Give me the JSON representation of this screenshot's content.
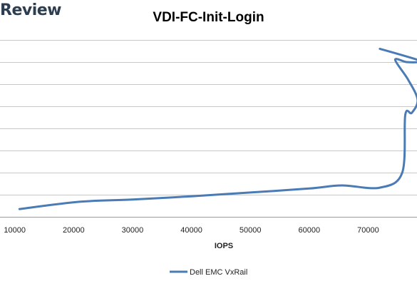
{
  "header": {
    "brand": "Review"
  },
  "chart_data": {
    "type": "line",
    "title": "VDI-FC-Init-Login",
    "xlabel": "IOPS",
    "ylabel": "",
    "x_ticks": [
      10000,
      20000,
      30000,
      40000,
      50000,
      60000,
      70000
    ],
    "xlim": [
      7500,
      78300
    ],
    "ylim": [
      0,
      8
    ],
    "grid": true,
    "legend": "bottom",
    "series": [
      {
        "name": "Dell EMC VxRail",
        "color": "#4a7bb5",
        "points": [
          {
            "x": 10800,
            "y": 0.35
          },
          {
            "x": 21000,
            "y": 0.68
          },
          {
            "x": 30000,
            "y": 0.78
          },
          {
            "x": 40000,
            "y": 0.93
          },
          {
            "x": 50000,
            "y": 1.1
          },
          {
            "x": 60000,
            "y": 1.28
          },
          {
            "x": 65500,
            "y": 1.42
          },
          {
            "x": 72000,
            "y": 1.32
          },
          {
            "x": 75800,
            "y": 2.0
          },
          {
            "x": 76300,
            "y": 4.6
          },
          {
            "x": 77400,
            "y": 4.7
          },
          {
            "x": 78400,
            "y": 5.3
          },
          {
            "x": 76800,
            "y": 6.2
          },
          {
            "x": 74600,
            "y": 7.1
          },
          {
            "x": 76500,
            "y": 7.0
          },
          {
            "x": 78400,
            "y": 7.0
          },
          {
            "x": 78400,
            "y": 7.1
          },
          {
            "x": 72000,
            "y": 7.6
          }
        ]
      }
    ]
  }
}
